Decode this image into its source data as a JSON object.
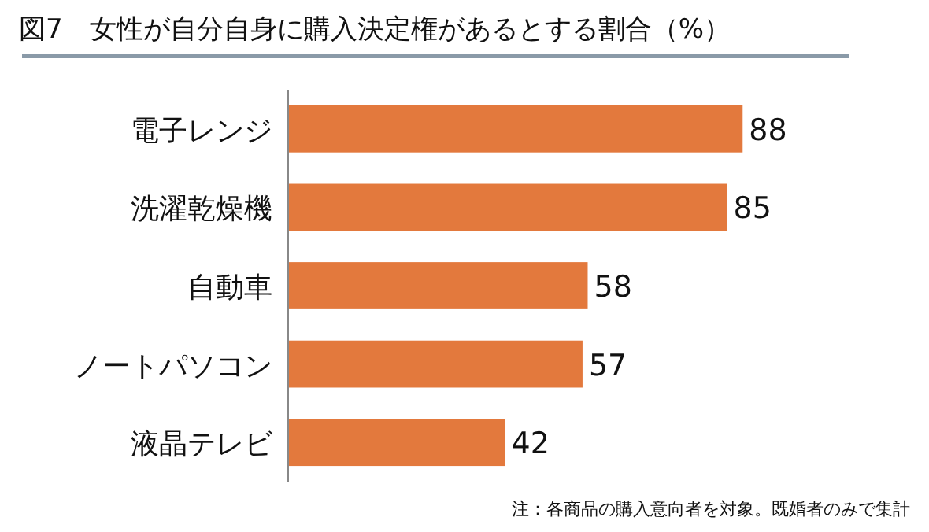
{
  "chart_data": {
    "type": "bar",
    "orientation": "horizontal",
    "title": "図7　女性が自分自身に購入決定権があるとする割合（%）",
    "categories": [
      "電子レンジ",
      "洗濯乾燥機",
      "自動車",
      "ノートパソコン",
      "液晶テレビ"
    ],
    "values": [
      88,
      85,
      58,
      57,
      42
    ],
    "color": "#e3793d",
    "data_labels": true,
    "annotations": [
      "注：各商品の購入意向者を対象。既婚者のみで集計"
    ]
  }
}
